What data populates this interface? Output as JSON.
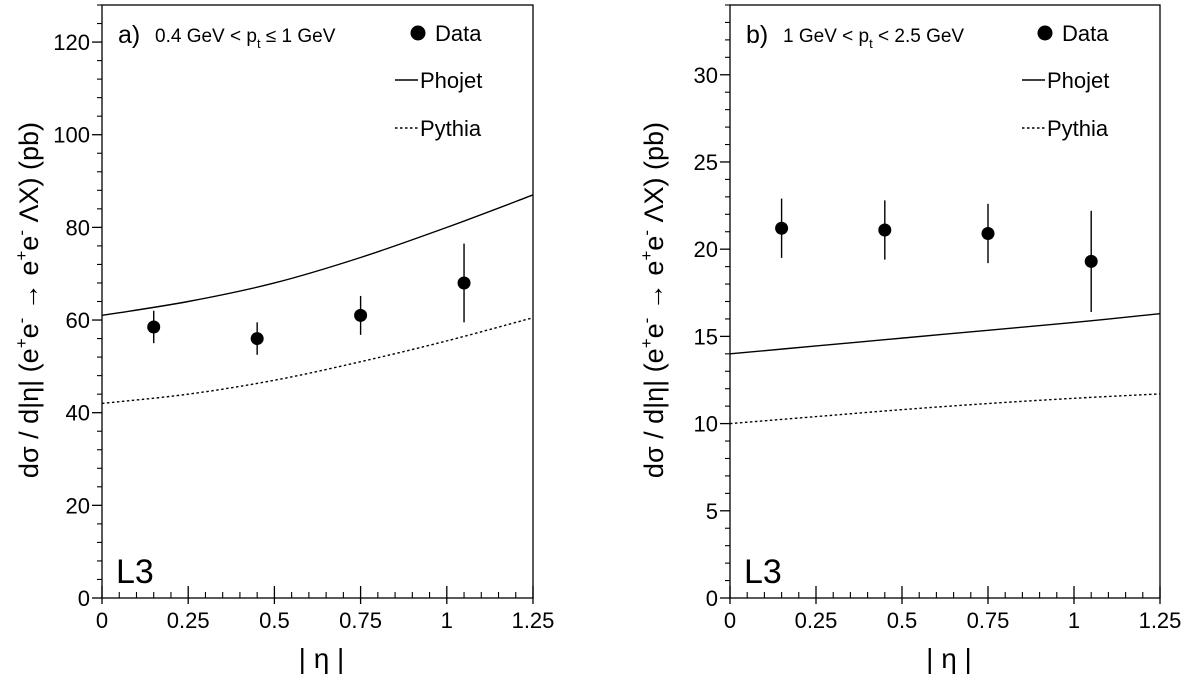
{
  "chart_data": [
    {
      "type": "scatter",
      "panel_label": "a)",
      "cut_label": {
        "pre": "0.4 GeV < p",
        "sub": "t",
        "post": " ≤ 1 GeV"
      },
      "experiment": "L3",
      "xlabel": "| η |",
      "ylabel_parts": {
        "a": "dσ / d|η| (e",
        "sup1": "+",
        "b": "e",
        "sup2": "-",
        "c": " → e",
        "sup3": "+",
        "d": "e",
        "sup4": "-",
        "e": " ΛX) (pb)"
      },
      "xlim": [
        0,
        1.25
      ],
      "ylim": [
        0,
        128
      ],
      "x_ticks": [
        "0",
        "0.25",
        "0.5",
        "0.75",
        "1",
        "1.25"
      ],
      "x_tick_values": [
        0,
        0.25,
        0.5,
        0.75,
        1,
        1.25
      ],
      "y_ticks": [
        "0",
        "20",
        "40",
        "60",
        "80",
        "100",
        "120"
      ],
      "y_tick_values": [
        0,
        20,
        40,
        60,
        80,
        100,
        120
      ],
      "legend_position": "top-right",
      "legend": [
        "Data",
        "Phojet",
        "Pythia"
      ],
      "series": [
        {
          "name": "Data",
          "kind": "points",
          "x": [
            0.15,
            0.45,
            0.75,
            1.05
          ],
          "y": [
            58.5,
            56,
            61,
            68
          ],
          "err": [
            3.5,
            3.5,
            4.2,
            8.5
          ]
        },
        {
          "name": "Phojet",
          "kind": "line",
          "x": [
            0,
            0.25,
            0.5,
            0.75,
            1,
            1.25
          ],
          "y": [
            61,
            64,
            68,
            73.5,
            80,
            87
          ]
        },
        {
          "name": "Pythia",
          "kind": "dashed",
          "x": [
            0,
            0.25,
            0.5,
            0.75,
            1,
            1.25
          ],
          "y": [
            42,
            44,
            47,
            51,
            55.5,
            60.5
          ]
        }
      ]
    },
    {
      "type": "scatter",
      "panel_label": "b)",
      "cut_label": {
        "pre": "1 GeV < p",
        "sub": "t",
        "post": " < 2.5 GeV"
      },
      "experiment": "L3",
      "xlabel": "| η |",
      "ylabel_parts": {
        "a": "dσ / d|η| (e",
        "sup1": "+",
        "b": "e",
        "sup2": "-",
        "c": " → e",
        "sup3": "+",
        "d": "e",
        "sup4": "-",
        "e": " ΛX) (pb)"
      },
      "xlim": [
        0,
        1.25
      ],
      "ylim": [
        0,
        34
      ],
      "x_ticks": [
        "0",
        "0.25",
        "0.5",
        "0.75",
        "1",
        "1.25"
      ],
      "x_tick_values": [
        0,
        0.25,
        0.5,
        0.75,
        1,
        1.25
      ],
      "y_ticks": [
        "0",
        "5",
        "10",
        "15",
        "20",
        "25",
        "30"
      ],
      "y_tick_values": [
        0,
        5,
        10,
        15,
        20,
        25,
        30
      ],
      "legend_position": "top-right",
      "legend": [
        "Data",
        "Phojet",
        "Pythia"
      ],
      "series": [
        {
          "name": "Data",
          "kind": "points",
          "x": [
            0.15,
            0.45,
            0.75,
            1.05
          ],
          "y": [
            21.2,
            21.1,
            20.9,
            19.3
          ],
          "err": [
            1.7,
            1.7,
            1.7,
            2.9
          ]
        },
        {
          "name": "Phojet",
          "kind": "line",
          "x": [
            0,
            0.25,
            0.5,
            0.75,
            1,
            1.25
          ],
          "y": [
            14,
            14.45,
            14.9,
            15.35,
            15.8,
            16.3
          ]
        },
        {
          "name": "Pythia",
          "kind": "dashed",
          "x": [
            0,
            0.25,
            0.5,
            0.75,
            1,
            1.25
          ],
          "y": [
            10,
            10.4,
            10.8,
            11.15,
            11.45,
            11.7
          ]
        }
      ]
    }
  ]
}
